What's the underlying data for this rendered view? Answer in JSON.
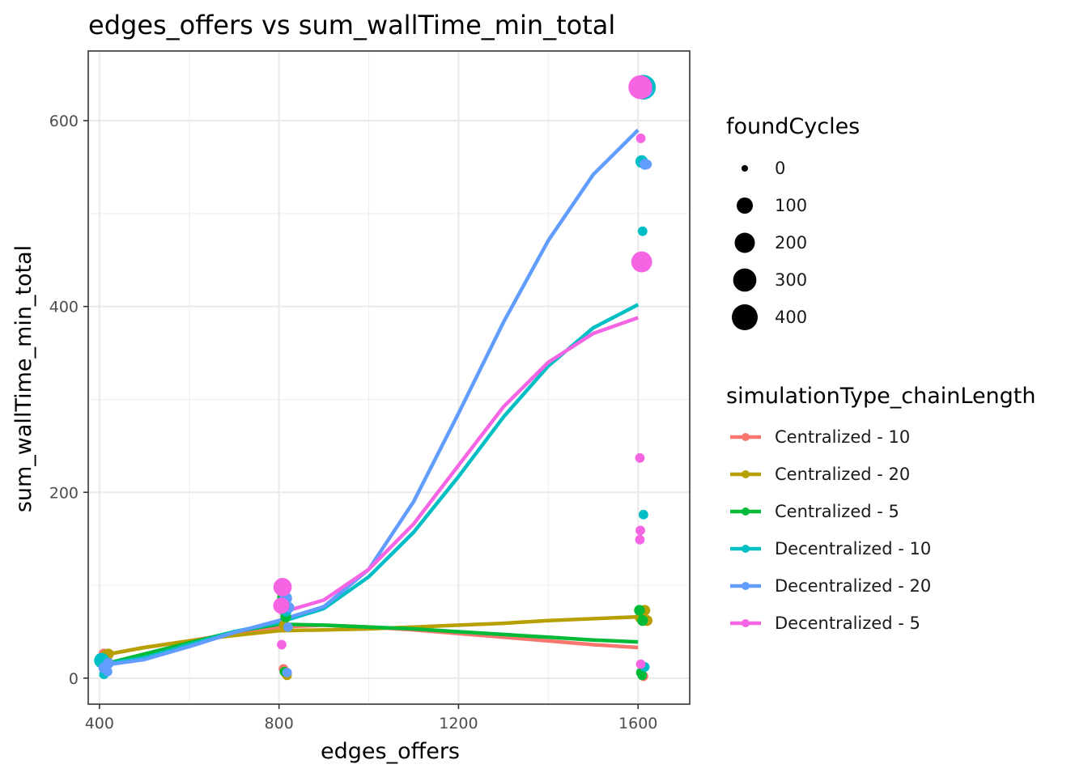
{
  "chart_data": {
    "type": "scatter",
    "title": "edges_offers  vs  sum_wallTime_min_total",
    "xlabel": "edges_offers",
    "ylabel": "sum_wallTime_min_total",
    "xlim": [
      375,
      1715
    ],
    "ylim": [
      -28,
      675
    ],
    "xticks": [
      400,
      800,
      1200,
      1600
    ],
    "xtick_labels": [
      "400",
      "800",
      "1200",
      "1600"
    ],
    "yticks": [
      0,
      200,
      400,
      600
    ],
    "ytick_labels": [
      "0",
      "200",
      "400",
      "600"
    ],
    "grid": true,
    "legend_placement": "right",
    "size_legend": {
      "title": "foundCycles",
      "entries": [
        {
          "label": "0",
          "value": 0
        },
        {
          "label": "100",
          "value": 100
        },
        {
          "label": "200",
          "value": 200
        },
        {
          "label": "300",
          "value": 300
        },
        {
          "label": "400",
          "value": 400
        }
      ]
    },
    "color_legend": {
      "title": "simulationType_chainLength"
    },
    "series": [
      {
        "name": "Centralized - 10",
        "color": "#F8766D",
        "points": [
          [
            410,
            26,
            20
          ],
          [
            416,
            22,
            20
          ],
          [
            810,
            10,
            10
          ],
          [
            815,
            5,
            10
          ],
          [
            1608,
            5,
            10
          ],
          [
            1612,
            2,
            10
          ]
        ],
        "smooth": [
          [
            410,
            25
          ],
          [
            500,
            33
          ],
          [
            600,
            40
          ],
          [
            700,
            48
          ],
          [
            800,
            55
          ],
          [
            900,
            57
          ],
          [
            1000,
            55
          ],
          [
            1100,
            52
          ],
          [
            1200,
            48
          ],
          [
            1300,
            44
          ],
          [
            1400,
            40
          ],
          [
            1500,
            36
          ],
          [
            1600,
            33
          ]
        ]
      },
      {
        "name": "Centralized - 20",
        "color": "#B79F00",
        "points": [
          [
            415,
            25,
            20
          ],
          [
            420,
            26,
            20
          ],
          [
            812,
            57,
            20
          ],
          [
            818,
            3,
            10
          ],
          [
            1605,
            65,
            20
          ],
          [
            1615,
            73,
            20
          ],
          [
            1620,
            62,
            20
          ]
        ],
        "smooth": [
          [
            410,
            25
          ],
          [
            500,
            33
          ],
          [
            600,
            40
          ],
          [
            700,
            46
          ],
          [
            800,
            51
          ],
          [
            900,
            52
          ],
          [
            1000,
            53
          ],
          [
            1100,
            55
          ],
          [
            1200,
            57
          ],
          [
            1300,
            59
          ],
          [
            1400,
            62
          ],
          [
            1500,
            64
          ],
          [
            1600,
            66
          ]
        ]
      },
      {
        "name": "Centralized - 5",
        "color": "#00BA38",
        "points": [
          [
            412,
            18,
            20
          ],
          [
            808,
            87,
            20
          ],
          [
            815,
            66,
            20
          ],
          [
            812,
            7,
            10
          ],
          [
            1603,
            73,
            20
          ],
          [
            1610,
            62,
            20
          ],
          [
            1606,
            6,
            10
          ],
          [
            1609,
            3,
            10
          ]
        ],
        "smooth": [
          [
            410,
            15
          ],
          [
            500,
            26
          ],
          [
            600,
            38
          ],
          [
            700,
            50
          ],
          [
            800,
            58
          ],
          [
            900,
            57
          ],
          [
            1000,
            55
          ],
          [
            1100,
            53
          ],
          [
            1200,
            50
          ],
          [
            1300,
            47
          ],
          [
            1400,
            44
          ],
          [
            1500,
            41
          ],
          [
            1600,
            39
          ]
        ]
      },
      {
        "name": "Decentralized - 10",
        "color": "#00BFC4",
        "points": [
          [
            405,
            19,
            80
          ],
          [
            410,
            4,
            10
          ],
          [
            810,
            82,
            40
          ],
          [
            816,
            72,
            20
          ],
          [
            1612,
            636,
            350
          ],
          [
            1608,
            556,
            40
          ],
          [
            1610,
            481,
            10
          ],
          [
            1612,
            176,
            10
          ],
          [
            1615,
            12,
            10
          ]
        ],
        "smooth": [
          [
            410,
            15
          ],
          [
            500,
            22
          ],
          [
            600,
            36
          ],
          [
            700,
            50
          ],
          [
            800,
            60
          ],
          [
            900,
            75
          ],
          [
            1000,
            109
          ],
          [
            1100,
            157
          ],
          [
            1200,
            217
          ],
          [
            1300,
            281
          ],
          [
            1400,
            336
          ],
          [
            1500,
            377
          ],
          [
            1600,
            402
          ]
        ]
      },
      {
        "name": "Decentralized - 20",
        "color": "#619CFF",
        "points": [
          [
            410,
            11,
            20
          ],
          [
            418,
            7,
            10
          ],
          [
            420,
            16,
            20
          ],
          [
            815,
            86,
            40
          ],
          [
            822,
            76,
            20
          ],
          [
            820,
            55,
            10
          ],
          [
            818,
            6,
            10
          ],
          [
            1618,
            632,
            40
          ],
          [
            1615,
            553,
            20
          ],
          [
            1620,
            553,
            10
          ]
        ],
        "smooth": [
          [
            410,
            14
          ],
          [
            500,
            20
          ],
          [
            600,
            34
          ],
          [
            700,
            49
          ],
          [
            800,
            62
          ],
          [
            900,
            77
          ],
          [
            1000,
            117
          ],
          [
            1100,
            190
          ],
          [
            1200,
            285
          ],
          [
            1300,
            383
          ],
          [
            1400,
            471
          ],
          [
            1500,
            542
          ],
          [
            1600,
            590
          ]
        ]
      },
      {
        "name": "Decentralized - 5",
        "color": "#F564E3",
        "points": [
          [
            808,
            98,
            150
          ],
          [
            805,
            78,
            100
          ],
          [
            806,
            36,
            10
          ],
          [
            1605,
            636,
            320
          ],
          [
            1608,
            448,
            220
          ],
          [
            1606,
            581,
            10
          ],
          [
            1604,
            237,
            10
          ],
          [
            1605,
            159,
            10
          ],
          [
            1604,
            149,
            10
          ],
          [
            1606,
            15,
            10
          ]
        ],
        "smooth": [
          [
            800,
            70
          ],
          [
            900,
            84
          ],
          [
            1000,
            117
          ],
          [
            1100,
            166
          ],
          [
            1200,
            229
          ],
          [
            1300,
            292
          ],
          [
            1400,
            340
          ],
          [
            1500,
            371
          ],
          [
            1600,
            388
          ]
        ]
      }
    ]
  }
}
